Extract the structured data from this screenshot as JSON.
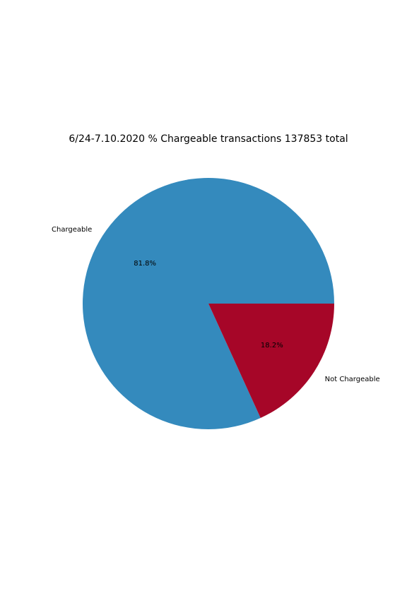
{
  "chart_data": {
    "type": "pie",
    "title": "6/24-7.10.2020 % Chargeable transactions 137853 total",
    "categories": [
      "Chargeable",
      "Not Chargeable"
    ],
    "values": [
      81.8,
      18.2
    ],
    "percent_labels": [
      "81.8%",
      "18.2%"
    ],
    "colors": [
      "#348ABD",
      "#A60628"
    ],
    "legend": "none",
    "grid": false
  }
}
